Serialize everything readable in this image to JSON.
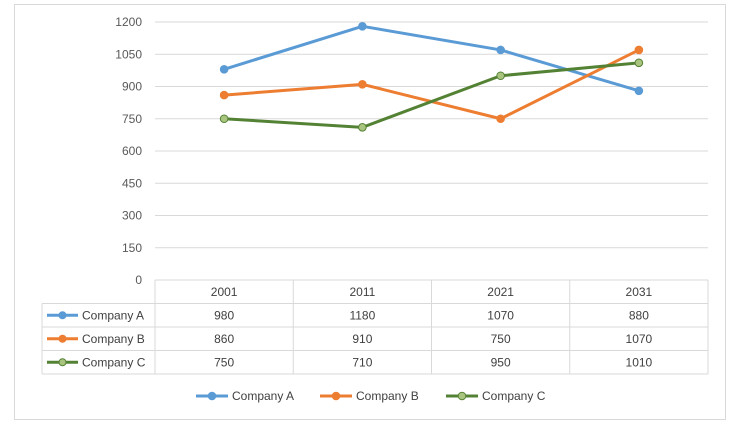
{
  "chart_data": {
    "type": "line",
    "title": "",
    "xlabel": "",
    "ylabel": "",
    "categories": [
      "2001",
      "2011",
      "2021",
      "2031"
    ],
    "ylim": [
      0,
      1200
    ],
    "yticks": [
      0,
      150,
      300,
      450,
      600,
      750,
      900,
      1050,
      1200
    ],
    "grid": true,
    "legend_position": "bottom",
    "data_table": true,
    "series": [
      {
        "name": "Company A",
        "color": "#5b9bd5",
        "values": [
          980,
          1180,
          1070,
          880
        ]
      },
      {
        "name": "Company B",
        "color": "#ed7d31",
        "values": [
          860,
          910,
          750,
          1070
        ]
      },
      {
        "name": "Company C",
        "color": "#548235",
        "marker_fill": "#a9c47f",
        "values": [
          750,
          710,
          950,
          1010
        ]
      }
    ]
  }
}
